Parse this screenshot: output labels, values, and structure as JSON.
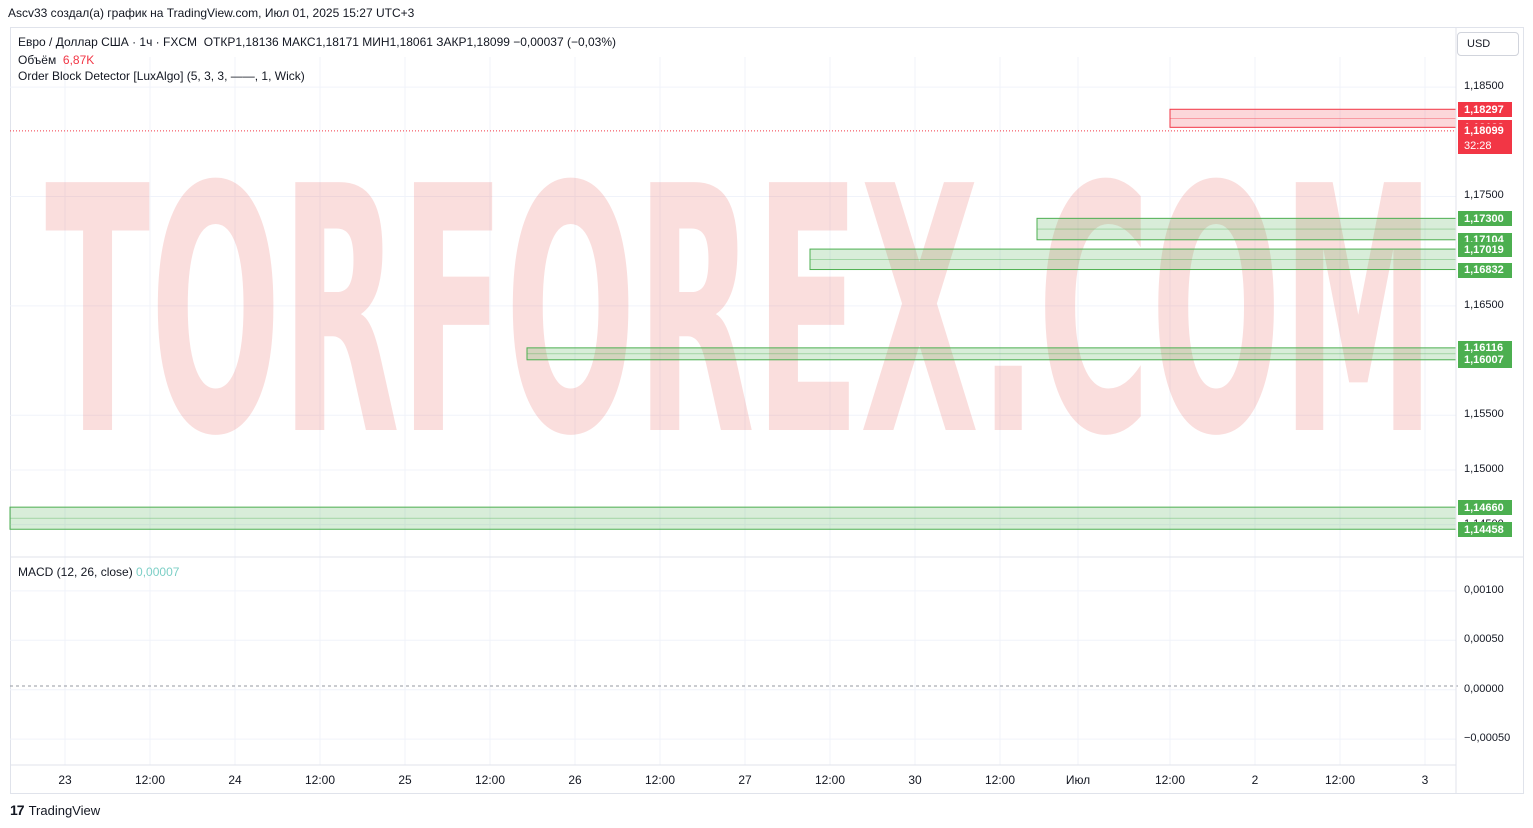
{
  "header": {
    "attribution": "Ascv33 создал(а) график на TradingView.com, Июл 01, 2025 15:27 UTC+3"
  },
  "legend": {
    "symbol": "Евро / Доллар США · 1ч · FXCM",
    "ohlc": "ОТКР1,18136  МАКС1,18171  МИН1,18061  ЗАКР1,18099  −0,00037 (−0,03%)",
    "volume_label": "Объём",
    "volume_value": "6,87K",
    "indicator": "Order Block Detector [LuxAlgo] (5, 3, 3, ——, 1, Wick)"
  },
  "currency_button": "USD",
  "watermark": "TORFOREX.COM",
  "price_axis": {
    "ticks": [
      "1,18500",
      "1,17500",
      "1,16500",
      "1,15500",
      "1,15000",
      "1,14500"
    ],
    "ticks_data": [
      1.185,
      1.175,
      1.165,
      1.155,
      1.15,
      1.145
    ],
    "range": [
      1.1425,
      1.1872
    ],
    "level_tags": [
      {
        "label": "1,18297",
        "value": 1.18297,
        "color": "red"
      },
      {
        "label": "1,18132",
        "value": 1.18132,
        "color": "red"
      },
      {
        "label": "1,18099",
        "value": 1.18099,
        "color": "red"
      },
      {
        "label": "1,17300",
        "value": 1.173,
        "color": "green"
      },
      {
        "label": "1,17104",
        "value": 1.17104,
        "color": "green"
      },
      {
        "label": "1,17019",
        "value": 1.17019,
        "color": "green"
      },
      {
        "label": "1,16832",
        "value": 1.16832,
        "color": "green"
      },
      {
        "label": "1,16116",
        "value": 1.16116,
        "color": "green"
      },
      {
        "label": "1,16007",
        "value": 1.16007,
        "color": "green"
      },
      {
        "label": "1,14660",
        "value": 1.1466,
        "color": "green"
      },
      {
        "label": "1,14458",
        "value": 1.14458,
        "color": "green"
      }
    ],
    "countdown": "32:28"
  },
  "macd": {
    "label": "MACD (12, 26, close)",
    "value": "0,00007",
    "ticks": [
      "0,00100",
      "0,00050",
      "0,00000",
      "−0,00050"
    ],
    "ticks_data": [
      0.001,
      0.0005,
      0.0,
      -0.0005
    ],
    "range": [
      -0.00066,
      0.00113
    ]
  },
  "time_axis": {
    "labels": [
      "23",
      "12:00",
      "24",
      "12:00",
      "25",
      "12:00",
      "26",
      "12:00",
      "27",
      "12:00",
      "30",
      "12:00",
      "Июл",
      "12:00",
      "2",
      "12:00",
      "3"
    ]
  },
  "footer": {
    "brand": "TradingView",
    "logo": "17"
  },
  "chart_data": {
    "type": "candlestick",
    "symbol": "EURUSD",
    "timeframe": "1ч",
    "last_close": 1.18099,
    "order_blocks": [
      {
        "type": "bearish",
        "top": 1.18297,
        "bottom": 1.18132
      },
      {
        "type": "bullish",
        "top": 1.173,
        "bottom": 1.17104
      },
      {
        "type": "bullish",
        "top": 1.17019,
        "bottom": 1.16832
      },
      {
        "type": "bullish",
        "top": 1.16116,
        "bottom": 1.16007
      },
      {
        "type": "bullish",
        "top": 1.1466,
        "bottom": 1.14458
      }
    ],
    "colors": {
      "up": "#26a69a",
      "down": "#ef5350",
      "ob_bull": "#4caf50",
      "ob_bear": "#f23645",
      "forecast": "#2962ff"
    }
  }
}
